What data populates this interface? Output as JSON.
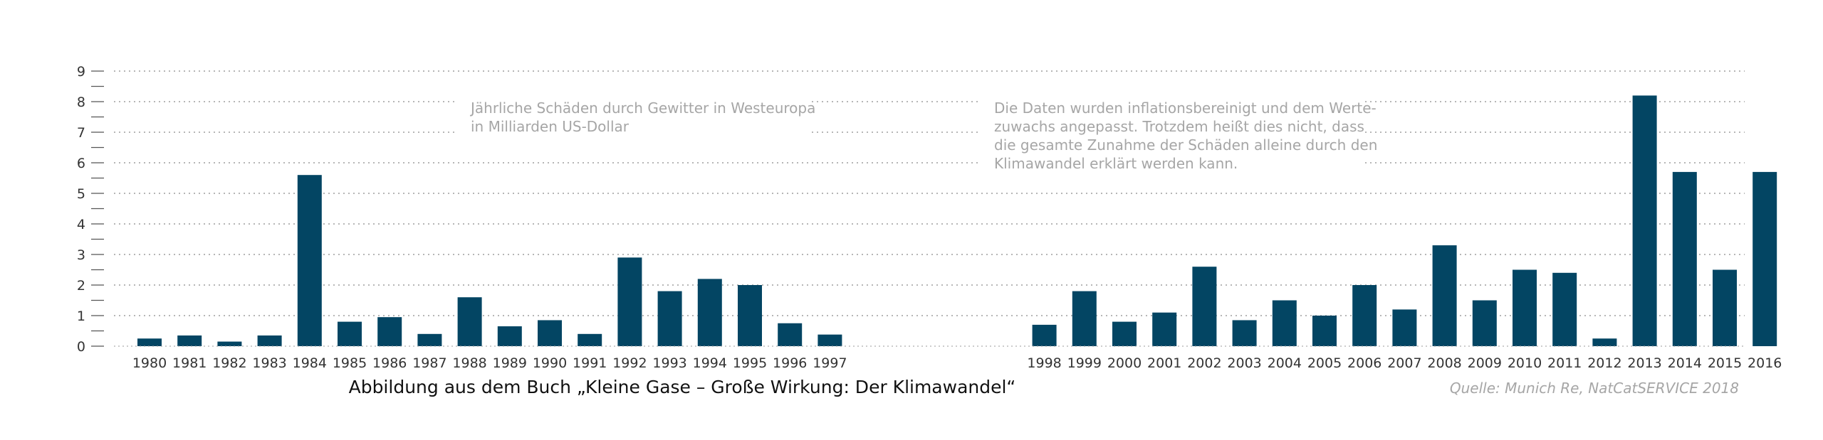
{
  "chart_data": {
    "type": "bar",
    "annotations": [
      [
        "Jährliche Schäden durch Gewitter in Westeuropa",
        "in Milliarden US-Dollar"
      ],
      [
        "Die Daten wurden inflationsbereinigt und dem Werte-",
        "zuwachs angepasst. Trotzdem heißt dies nicht, dass",
        "die gesamte Zunahme der Schäden alleine durch den",
        "Klimawandel erklärt werden kann."
      ]
    ],
    "caption": "Abbildung aus dem Buch „Kleine Gase – Große Wirkung: Der Klimawandel“",
    "source": "Quelle: Munich Re, NatCatSERVICE 2018",
    "ylim": [
      0,
      9
    ],
    "yticks": [
      0,
      1,
      2,
      3,
      4,
      5,
      6,
      7,
      8,
      9
    ],
    "grid": true,
    "bar_color": "#034563",
    "categories": [
      "1980",
      "1981",
      "1982",
      "1983",
      "1984",
      "1985",
      "1986",
      "1987",
      "1988",
      "1989",
      "1990",
      "1991",
      "1992",
      "1993",
      "1994",
      "1995",
      "1996",
      "1997",
      "1998",
      "1999",
      "2000",
      "2001",
      "2002",
      "2003",
      "2004",
      "2005",
      "2006",
      "2007",
      "2008",
      "2009",
      "2010",
      "2011",
      "2012",
      "2013",
      "2014",
      "2015",
      "2016"
    ],
    "values": [
      0.25,
      0.35,
      0.15,
      0.35,
      5.6,
      0.8,
      0.95,
      0.4,
      1.6,
      0.65,
      0.85,
      0.4,
      2.9,
      1.8,
      2.2,
      2.0,
      0.75,
      0.38,
      0.7,
      1.8,
      0.8,
      1.1,
      2.6,
      0.85,
      1.5,
      1.0,
      2.0,
      1.2,
      3.3,
      1.5,
      2.5,
      2.4,
      0.25,
      8.2,
      5.7,
      2.5,
      5.7
    ]
  }
}
